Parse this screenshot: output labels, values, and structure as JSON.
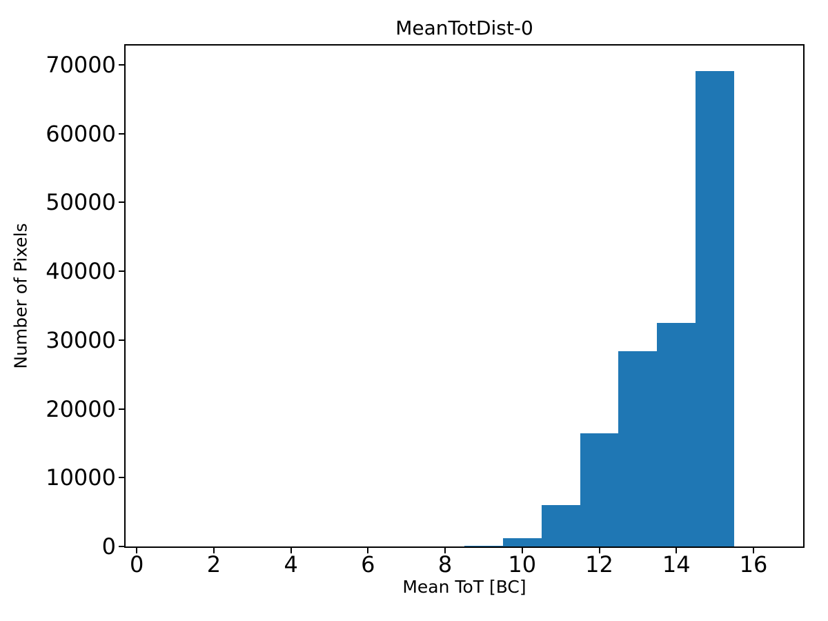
{
  "chart_data": {
    "type": "bar",
    "title": "MeanTotDist-0",
    "xlabel": "Mean ToT [BC]",
    "ylabel": "Number of Pixels",
    "bar_color": "#1f77b4",
    "axis_color": "#000000",
    "background_color": "#ffffff",
    "grid": false,
    "legend": null,
    "xlim": [
      -0.29,
      17.29
    ],
    "ylim": [
      0,
      72800
    ],
    "xticks": [
      0,
      2,
      4,
      6,
      8,
      10,
      12,
      14,
      16
    ],
    "yticks": [
      0,
      10000,
      20000,
      30000,
      40000,
      50000,
      60000,
      70000
    ],
    "bins": [
      {
        "x0": 8.5,
        "x1": 9.5,
        "count": 140
      },
      {
        "x0": 9.5,
        "x1": 10.5,
        "count": 1200
      },
      {
        "x0": 10.5,
        "x1": 11.5,
        "count": 6000
      },
      {
        "x0": 11.5,
        "x1": 12.5,
        "count": 16450
      },
      {
        "x0": 12.5,
        "x1": 13.5,
        "count": 28400
      },
      {
        "x0": 13.5,
        "x1": 14.5,
        "count": 32500
      },
      {
        "x0": 14.5,
        "x1": 15.5,
        "count": 69100
      }
    ]
  }
}
